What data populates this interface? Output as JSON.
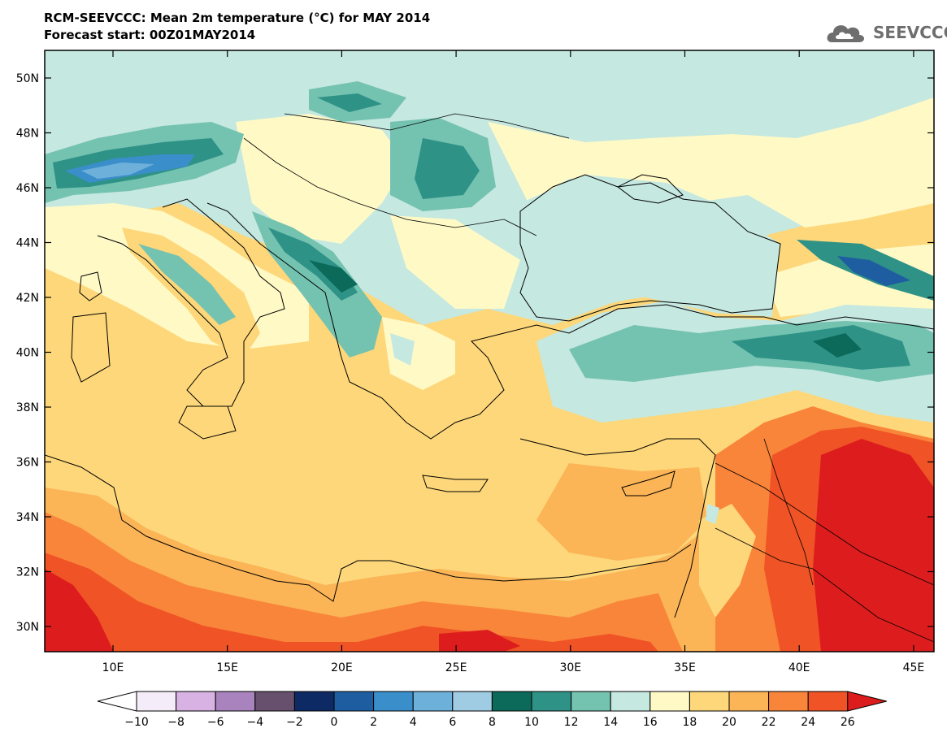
{
  "title_line1": "RCM-SEEVCCC: Mean 2m temperature (°C) for MAY 2014",
  "title_line2": "Forecast start: 00Z01MAY2014",
  "logo_text": "SEEVCCC",
  "latitude_labels": [
    "50N",
    "48N",
    "46N",
    "44N",
    "42N",
    "40N",
    "38N",
    "36N",
    "34N",
    "32N",
    "30N"
  ],
  "latitude_values": [
    50,
    48,
    46,
    44,
    42,
    40,
    38,
    36,
    34,
    32,
    30
  ],
  "longitude_labels": [
    "10E",
    "15E",
    "20E",
    "25E",
    "30E",
    "35E",
    "40E",
    "45E"
  ],
  "longitude_values": [
    10,
    15,
    20,
    25,
    30,
    35,
    40,
    45
  ],
  "colorbar": {
    "tick_labels": [
      "-10",
      "-8",
      "-6",
      "-4",
      "-2",
      "0",
      "2",
      "4",
      "6",
      "8",
      "10",
      "12",
      "14",
      "16",
      "18",
      "20",
      "22",
      "24",
      "26"
    ],
    "colors": [
      "#f4ecf8",
      "#d8b2e3",
      "#a883bd",
      "#67506e",
      "#0e2a64",
      "#1e5ea0",
      "#3a8ec9",
      "#6db0da",
      "#9fcbe3",
      "#0b6a5a",
      "#2f9287",
      "#74c2b0",
      "#c5e8e0",
      "#fff9c6",
      "#fdd77a",
      "#fbb456",
      "#f9853a",
      "#f05325"
    ],
    "low_extension_color": "#ffffff",
    "high_extension_color": "#dd1d1d"
  }
}
